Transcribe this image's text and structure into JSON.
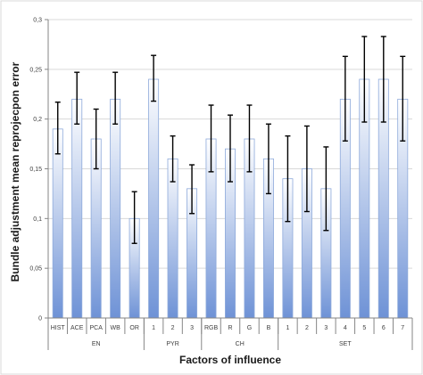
{
  "chart_data": {
    "type": "bar",
    "title": "",
    "ylabel": "Bundle adjustment mean reprojecpon error",
    "xlabel": "Factors of influence",
    "ylim": [
      0,
      0.3
    ],
    "y_ticks": [
      "0",
      "0,05",
      "0,1",
      "0,15",
      "0,2",
      "0,25",
      "0,3"
    ],
    "y_tick_values": [
      0,
      0.05,
      0.1,
      0.15,
      0.2,
      0.25,
      0.3
    ],
    "grid": true,
    "bar_color_top": "#ffffff",
    "bar_color_bottom": "#6e92d6",
    "categories": [
      "HIST",
      "ACE",
      "PCA",
      "WB",
      "OR",
      "1",
      "2",
      "3",
      "RGB",
      "R",
      "G",
      "B",
      "1",
      "2",
      "3",
      "4",
      "5",
      "6",
      "7"
    ],
    "groups": [
      {
        "label": "EN",
        "count": 5
      },
      {
        "label": "PYR",
        "count": 3
      },
      {
        "label": "CH",
        "count": 4
      },
      {
        "label": "SET",
        "count": 7
      }
    ],
    "series": [
      {
        "values": [
          0.19,
          0.22,
          0.18,
          0.22,
          0.1,
          0.24,
          0.16,
          0.13,
          0.18,
          0.17,
          0.18,
          0.16,
          0.14,
          0.15,
          0.13,
          0.22,
          0.24,
          0.24,
          0.22
        ],
        "error_low": [
          0.165,
          0.195,
          0.15,
          0.195,
          0.075,
          0.218,
          0.137,
          0.105,
          0.147,
          0.137,
          0.147,
          0.125,
          0.097,
          0.107,
          0.088,
          0.178,
          0.197,
          0.197,
          0.178
        ],
        "error_high": [
          0.217,
          0.247,
          0.21,
          0.247,
          0.127,
          0.264,
          0.183,
          0.154,
          0.214,
          0.204,
          0.214,
          0.195,
          0.183,
          0.193,
          0.172,
          0.263,
          0.283,
          0.283,
          0.263
        ]
      }
    ]
  }
}
